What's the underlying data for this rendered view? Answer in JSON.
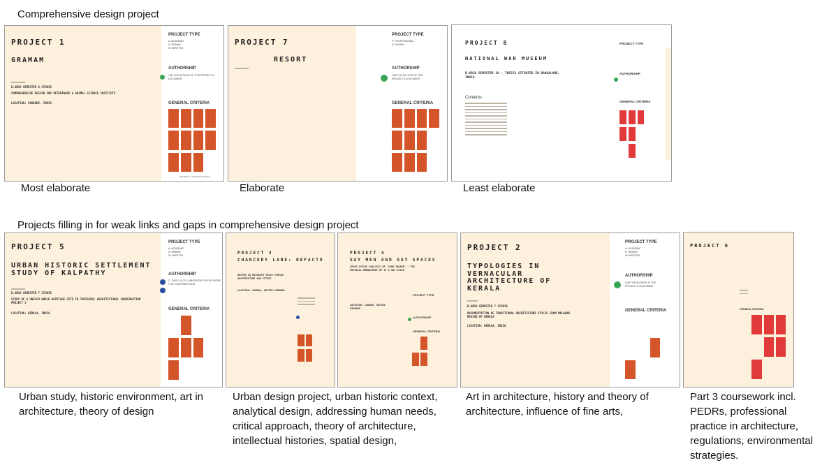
{
  "headings": {
    "comprehensive": "Comprehensive design project",
    "filling": "Projects filling in for weak links and gaps in comprehensive design project"
  },
  "captions": {
    "p1": "Most elaborate",
    "p7": "Elaborate",
    "p8": "Least elaborate",
    "p5": "Urban study, historic environment, art in architecture, theory of design",
    "p3": "Urban design project, urban historic context, analytical design, addressing human needs, critical approach, theory of architecture, intellectual histories, spatial design,",
    "p4": "",
    "p2": "Art in architecture, history and theory of architecture, influence of fine arts,",
    "p6": "Part 3 coursework incl. PEDRs, professional practice in architecture, regulations, environmental strategies."
  },
  "slides": {
    "p1": {
      "title": "PROJECT 1",
      "name": "GRAMAM",
      "sub": "B.ARCH SEMESTER 8 STUDIO",
      "desc": "COMPREHENSIVE DESIGN FOR VETERINARY & ANIMAL SCIENCE INSTITUTE",
      "loc": "LOCATION: POOKODE, INDIA",
      "type_head": "PROJECT TYPE",
      "type_lines": "A: ACADEMIC\nD: DRAWN\nW: WRITTEN",
      "auth_head": "AUTHORSHIP",
      "auth_text": "I AM THE AUTHOR OF THIS PROJECT & DOCUMENT",
      "crit_head": "GENERAL CRITERIA",
      "footer": "PROJECT 1: GRAMAM  |  PAGE 1"
    },
    "p7": {
      "title": "PROJECT 7",
      "name": "RESORT",
      "type_head": "PROJECT TYPE",
      "type_lines": "P: PROFESSIONAL\nD: DRAWN",
      "auth_head": "AUTHORSHIP",
      "auth_text": "I AM THE AUTHOR OF THE PROJECT & DOCUMENT",
      "crit_head": "GENERAL CRITERIA"
    },
    "p8": {
      "title": "PROJECT 8",
      "name": "NATIONAL WAR MUSEUM",
      "sub": "B.ARCH SEMESTER 10 - THESIS SITUATED IN BANGALORE, INDIA",
      "contents": "Contents",
      "type_head": "PROJECT TYPE",
      "auth_head": "AUTHORSHIP",
      "crit_head": "GENERAL CRITERIA"
    },
    "p5": {
      "title": "PROJECT 5",
      "name": "URBAN HISTORIC SETTLEMENT STUDY OF KALPATHY",
      "sub": "B.ARCH SEMESTER 7 STUDIO",
      "desc": "STUDY OF A UNESCO WORLD HERITAGE SITE IN THRISSUR; ARCHITECTURAL CONSERVATION PROJECT 2",
      "loc": "LOCATION: KERALA, INDIA",
      "type_head": "PROJECT TYPE",
      "type_lines": "A: ACADEMIC\nD: DRAWN\nW: WRITTEN",
      "auth_head": "AUTHORSHIP",
      "auth_text": "C: THIS IS A COLLABORATIVE GROUP WORK\nI: MY CONTRIBUTIONS",
      "crit_head": "GENERAL CRITERIA"
    },
    "p3": {
      "title": "PROJECT 3",
      "name": "CHANCERY LANE: DEFACTO",
      "sub": "MASTER IN RESEARCH SPACE SYNTAX: ARCHITECTURE AND CITIES",
      "loc": "LOCATION: LONDON, UNITED KINGDOM"
    },
    "p4": {
      "title": "PROJECT 4",
      "name": "GAY MEN AND GAY SPACES",
      "sub": "SPACE SYNTAX ANALYSIS OF 'SOHO SQUARE' - THE PHYSICAL EMBODIMENT OF IT'S GAY SPACE",
      "loc": "LOCATION: LONDON, UNITED KINGDOM",
      "type_head": "PROJECT TYPE",
      "auth_head": "AUTHORSHIP",
      "crit_head": "GENERAL CRITERIA"
    },
    "p2": {
      "title": "PROJECT 2",
      "name": "TYPOLOGIES IN VERNACULAR ARCHITECTURE OF KERALA",
      "sub": "B.ARCH SEMESTER 7 STUDIO",
      "desc": "DOCUMENTATION OF TRADITIONAL ARCHITECTURE STYLES FROM MALABAR REGION OF KERALA",
      "loc": "LOCATION: KERALA, INDIA",
      "type_head": "PROJECT TYPE",
      "type_lines": "A: ACADEMIC\nD: DRAWN\nW: WRITTEN",
      "auth_head": "AUTHORSHIP",
      "auth_text": "I AM THE AUTHOR OF THE PROJECT & DOCUMENT",
      "crit_head": "GENERAL CRITERIA"
    },
    "p6": {
      "title": "PROJECT 6",
      "crit_head": "GENERAL CRITERIA"
    }
  },
  "colors": {
    "slide_bg": "#fdf0dc",
    "criteria_accent": "#d4552a",
    "criteria_red": "#e23a3a",
    "auth_dot_green": "#3aa655",
    "auth_dot_blue": "#2a4fa0"
  }
}
